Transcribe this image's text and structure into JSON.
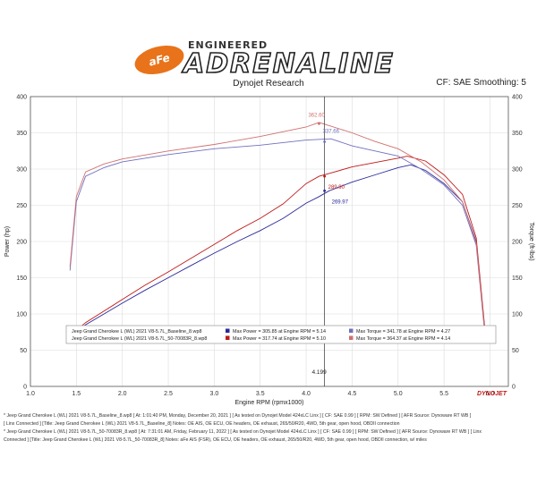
{
  "header": {
    "logo_text": "aFe POWER",
    "brand_top": "ENGINEERED",
    "brand_main": "ADRENALINE",
    "subtitle": "Dynojet Research",
    "cf_info": "CF: SAE Smoothing: 5"
  },
  "colors": {
    "baseline": "#2a2a9a",
    "modified": "#c01818",
    "baseline_torque": "#7070c0",
    "modified_torque": "#d07070"
  },
  "chart_data": {
    "type": "line",
    "xlabel": "Engine RPM (rpmx1000)",
    "ylabel_left": "Power (hp)",
    "ylabel_right": "Torque (ft-lbs)",
    "xlim": [
      1.0,
      6.2
    ],
    "ylim": [
      0,
      400
    ],
    "x_ticks": [
      "1.0",
      "1.5",
      "2.0",
      "2.5",
      "3.0",
      "3.5",
      "4.0",
      "4.5",
      "5.0",
      "5.5",
      "6.0"
    ],
    "y_ticks": [
      "0",
      "50",
      "100",
      "150",
      "200",
      "250",
      "300",
      "350",
      "400"
    ],
    "series": [
      {
        "name": "Jeep Grand Cherokee L (WL) 2021 V8-5.7L_Baseline_8.wp8 - Power",
        "color": "#2a2a9a",
        "x": [
          1.43,
          1.6,
          1.8,
          2.0,
          2.25,
          2.5,
          2.75,
          3.0,
          3.25,
          3.5,
          3.75,
          4.0,
          4.14,
          4.25,
          4.5,
          4.75,
          5.0,
          5.14,
          5.3,
          5.5,
          5.7,
          5.85,
          5.95
        ],
        "y": [
          68,
          85,
          100,
          115,
          133,
          150,
          167,
          184,
          200,
          215,
          232,
          253,
          262,
          270,
          282,
          292,
          302,
          305.85,
          298,
          280,
          255,
          200,
          70
        ]
      },
      {
        "name": "Jeep Grand Cherokee L (WL) 2021 V8-5.7L_50-70083R_8.wp8 - Power",
        "color": "#c01818",
        "x": [
          1.43,
          1.6,
          1.8,
          2.0,
          2.25,
          2.5,
          2.75,
          3.0,
          3.25,
          3.5,
          3.75,
          4.0,
          4.14,
          4.25,
          4.5,
          4.75,
          5.0,
          5.1,
          5.3,
          5.5,
          5.7,
          5.85,
          5.95
        ],
        "y": [
          70,
          88,
          104,
          120,
          140,
          158,
          177,
          196,
          215,
          232,
          252,
          280,
          290,
          294,
          303,
          309,
          315,
          317.74,
          311,
          292,
          265,
          205,
          72
        ]
      },
      {
        "name": "Jeep Grand Cherokee L (WL) 2021 V8-5.7L_Baseline_8.wp8 - Torque",
        "color": "#7070c0",
        "x": [
          1.43,
          1.5,
          1.6,
          1.8,
          2.0,
          2.5,
          3.0,
          3.5,
          4.0,
          4.27,
          4.5,
          4.75,
          5.0,
          5.25,
          5.5,
          5.7,
          5.85,
          5.95
        ],
        "y": [
          160,
          255,
          290,
          302,
          310,
          320,
          328,
          333,
          340,
          341.78,
          332,
          325,
          318,
          300,
          278,
          250,
          195,
          65
        ]
      },
      {
        "name": "Jeep Grand Cherokee L (WL) 2021 V8-5.7L_50-70083R_8.wp8 - Torque",
        "color": "#d07070",
        "x": [
          1.43,
          1.5,
          1.6,
          1.8,
          2.0,
          2.5,
          3.0,
          3.5,
          4.0,
          4.14,
          4.5,
          4.75,
          5.0,
          5.25,
          5.5,
          5.7,
          5.85,
          5.95
        ],
        "y": [
          165,
          262,
          296,
          307,
          314,
          325,
          334,
          345,
          358,
          364.37,
          350,
          338,
          328,
          310,
          285,
          255,
          198,
          67
        ]
      }
    ],
    "peak_labels": [
      {
        "text": "362.60",
        "x": 4.14,
        "y": 362.6,
        "color": "#d07070"
      },
      {
        "text": "337.66",
        "x": 4.2,
        "y": 337.66,
        "color": "#7070c0"
      },
      {
        "text": "289.90",
        "x": 4.2,
        "y": 289.9,
        "color": "#c01818"
      },
      {
        "text": "269.97",
        "x": 4.2,
        "y": 269.97,
        "color": "#2a2a9a"
      }
    ],
    "cursor": {
      "x": 4.199,
      "label": "4.199"
    },
    "legend": {
      "placement": "bottom-left",
      "rows": [
        {
          "file": "Jeep Grand Cherokee L (WL) 2021 V8-5.7L_Baseline_8.wp8",
          "power_color": "#2a2a9a",
          "power": "Max Power = 305.85 at Engine RPM = 5.14",
          "torque_color": "#7070c0",
          "torque": "Max Torque = 341.78 at Engine RPM = 4.27"
        },
        {
          "file": "Jeep Grand Cherokee L (WL) 2021 V8-5.7L_50-70083R_8.wp8",
          "power_color": "#c01818",
          "power": "Max Power = 317.74 at Engine RPM = 5.10",
          "torque_color": "#d07070",
          "torque": "Max Torque = 364.37 at Engine RPM = 4.14"
        }
      ]
    },
    "watermark": "DYNOJET"
  },
  "notes": [
    "*    Jeep Grand Cherokee L (WL) 2021 V8-5.7L_Baseline_8.wp8 [ At: 1:01:40 PM, Monday, December 20, 2021 ] [ As tested on Dynojet Model 424xLC Linx ] [ CF: SAE 0.99 ] [ RPM: SW Defined ] [ AFR Source: Dynoware RT WB ]",
    "[ Linx Connected ] [Title: Jeep Grand Cherokee L (WL) 2021 V8-5.7L_Baseline_8]  Notes: OE AIS, OE ECU, OE headers, OE exhaust, 265/50/R20, 4WD, 5th gear, open hood, OBDII connection",
    "*    Jeep Grand Cherokee L (WL) 2021 V8-5.7L_50-70083R_8.wp8 [ At: 7:31:01 AM, Friday, February 11, 2022 ] [ As tested on Dynojet Model 424xLC Linx ] [ CF: SAE 0.99 ] [ RPM: SW Defined ] [ AFR Source: Dynoware RT WB ] [ Linx",
    "Connected ] [Title: Jeep Grand Cherokee L (WL) 2021 V8-5.7L_50-70083R_8]  Notes: aFe AIS (FSR), OE ECU, OE headers, OE exhaust, 265/50/R20, 4WD, 5th gear, open hood, OBDII connection, w/ miles"
  ]
}
